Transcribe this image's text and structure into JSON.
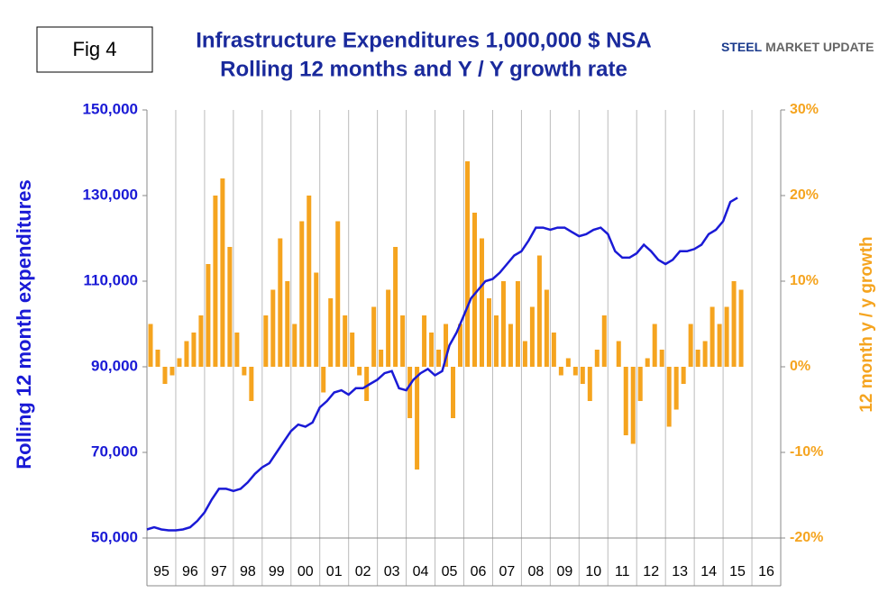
{
  "fig_label": "Fig 4",
  "logo": {
    "brand": "STEEL",
    "rest": "MARKET UPDATE"
  },
  "chart_data": {
    "type": "bar-line",
    "title": "Infrastructure Expenditures 1,000,000 $ NSA",
    "subtitle": "Rolling 12 months and Y / Y growth rate",
    "y_label": "Rolling 12 month expenditures",
    "y2_label": "12 month y / y growth",
    "xlim": [
      1995,
      2017
    ],
    "xticks": [
      {
        "value": 1995.5,
        "label": "95"
      },
      {
        "value": 1996.5,
        "label": "96"
      },
      {
        "value": 1997.5,
        "label": "97"
      },
      {
        "value": 1998.5,
        "label": "98"
      },
      {
        "value": 1999.5,
        "label": "99"
      },
      {
        "value": 2000.5,
        "label": "00"
      },
      {
        "value": 2001.5,
        "label": "01"
      },
      {
        "value": 2002.5,
        "label": "02"
      },
      {
        "value": 2003.5,
        "label": "03"
      },
      {
        "value": 2004.5,
        "label": "04"
      },
      {
        "value": 2005.5,
        "label": "05"
      },
      {
        "value": 2006.5,
        "label": "06"
      },
      {
        "value": 2007.5,
        "label": "07"
      },
      {
        "value": 2008.5,
        "label": "08"
      },
      {
        "value": 2009.5,
        "label": "09"
      },
      {
        "value": 2010.5,
        "label": "10"
      },
      {
        "value": 2011.5,
        "label": "11"
      },
      {
        "value": 2012.5,
        "label": "12"
      },
      {
        "value": 2013.5,
        "label": "13"
      },
      {
        "value": 2014.5,
        "label": "14"
      },
      {
        "value": 2015.5,
        "label": "15"
      },
      {
        "value": 2016.5,
        "label": "16"
      }
    ],
    "ylim": [
      50000,
      150000
    ],
    "yticks": [
      {
        "value": 50000,
        "label": "50,000"
      },
      {
        "value": 70000,
        "label": "70,000"
      },
      {
        "value": 90000,
        "label": "90,000"
      },
      {
        "value": 110000,
        "label": "110,000"
      },
      {
        "value": 130000,
        "label": "130,000"
      },
      {
        "value": 150000,
        "label": "150,000"
      }
    ],
    "y2lim": [
      -20,
      30
    ],
    "y2ticks": [
      {
        "value": -20,
        "label": "-20%"
      },
      {
        "value": -10,
        "label": "-10%"
      },
      {
        "value": 0,
        "label": "0%"
      },
      {
        "value": 10,
        "label": "10%"
      },
      {
        "value": 20,
        "label": "20%"
      },
      {
        "value": 30,
        "label": "30%"
      }
    ],
    "grid": true,
    "x": [
      1995,
      1995.25,
      1995.5,
      1995.75,
      1996,
      1996.25,
      1996.5,
      1996.75,
      1997,
      1997.25,
      1997.5,
      1997.75,
      1998,
      1998.25,
      1998.5,
      1998.75,
      1999,
      1999.25,
      1999.5,
      1999.75,
      2000,
      2000.25,
      2000.5,
      2000.75,
      2001,
      2001.25,
      2001.5,
      2001.75,
      2002,
      2002.25,
      2002.5,
      2002.75,
      2003,
      2003.25,
      2003.5,
      2003.75,
      2004,
      2004.25,
      2004.5,
      2004.75,
      2005,
      2005.25,
      2005.5,
      2005.75,
      2006,
      2006.25,
      2006.5,
      2006.75,
      2007,
      2007.25,
      2007.5,
      2007.75,
      2008,
      2008.25,
      2008.5,
      2008.75,
      2009,
      2009.25,
      2009.5,
      2009.75,
      2010,
      2010.25,
      2010.5,
      2010.75,
      2011,
      2011.25,
      2011.5,
      2011.75,
      2012,
      2012.25,
      2012.5,
      2012.75,
      2013,
      2013.25,
      2013.5,
      2013.75,
      2014,
      2014.25,
      2014.5,
      2014.75,
      2015,
      2015.25,
      2015.5
    ],
    "series": [
      {
        "name": "Rolling 12 month expenditures",
        "type": "line",
        "color": "#1a1ad6",
        "values": [
          52000,
          52500,
          52000,
          51800,
          51800,
          52000,
          52500,
          54000,
          56000,
          59000,
          61500,
          61500,
          61000,
          61500,
          63000,
          65000,
          66500,
          67500,
          70000,
          72500,
          75000,
          76500,
          76000,
          77000,
          80500,
          82000,
          84000,
          84500,
          83500,
          85000,
          85000,
          86000,
          87000,
          88500,
          89000,
          85000,
          84500,
          87000,
          88500,
          89500,
          88000,
          89000,
          95000,
          98000,
          102000,
          106000,
          108000,
          110000,
          110500,
          112000,
          114000,
          116000,
          117000,
          119500,
          122500,
          122500,
          122000,
          122500,
          122500,
          121500,
          120500,
          121000,
          122000,
          122500,
          121000,
          117000,
          115500,
          115500,
          116500,
          118500,
          117000,
          115000,
          114000,
          115000,
          117000,
          117000,
          117500,
          118500,
          121000,
          122000,
          124000,
          128500,
          129500
        ]
      },
      {
        "name": "12 month y / y growth",
        "type": "bar",
        "axis": "y2",
        "color": "#f5a41f",
        "values": [
          5,
          2,
          -2,
          -1,
          1,
          3,
          4,
          6,
          12,
          20,
          22,
          14,
          4,
          -1,
          -4,
          0,
          6,
          9,
          15,
          10,
          5,
          17,
          20,
          11,
          -3,
          8,
          17,
          6,
          4,
          -1,
          -4,
          7,
          2,
          9,
          14,
          6,
          -6,
          -12,
          6,
          4,
          2,
          5,
          -6,
          5,
          24,
          18,
          15,
          8,
          6,
          10,
          5,
          10,
          3,
          7,
          13,
          9,
          4,
          -1,
          1,
          -1,
          -2,
          -4,
          2,
          6,
          0,
          3,
          -8,
          -9,
          -4,
          1,
          5,
          2,
          -7,
          -5,
          -2,
          5,
          2,
          3,
          7,
          5,
          7,
          10,
          9
        ]
      }
    ]
  }
}
